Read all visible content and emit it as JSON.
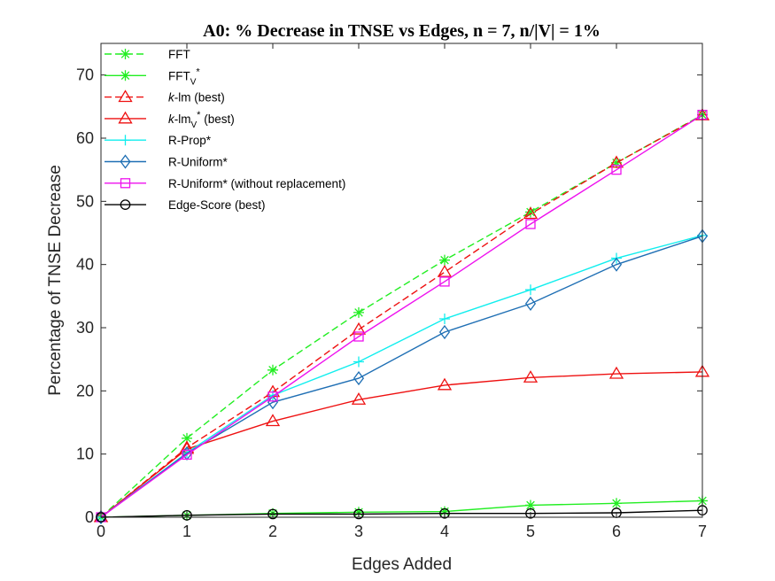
{
  "chart_data": {
    "type": "line",
    "title": "A0: % Decrease in TNSE vs Edges, n = 7, n/|V| = 1%",
    "xlabel": "Edges Added",
    "ylabel": "Percentage of TNSE Decrease",
    "xlim": [
      0,
      7
    ],
    "ylim": [
      0,
      75
    ],
    "xticks": [
      "0",
      "1",
      "2",
      "3",
      "4",
      "5",
      "6",
      "7"
    ],
    "yticks": [
      "0",
      "10",
      "20",
      "30",
      "40",
      "50",
      "60",
      "70"
    ],
    "grid": false,
    "legend_position": "top-left",
    "x": [
      0,
      1,
      2,
      3,
      4,
      5,
      6,
      7
    ],
    "series": [
      {
        "name": "FFT",
        "legend_main": "FFT",
        "legend_sub": "",
        "legend_sup": "",
        "legend_suffix": "",
        "color": "#22ee22",
        "dash": "dashed",
        "marker": "asterisk",
        "values": [
          0,
          12.5,
          23.3,
          32.4,
          40.7,
          48.3,
          56.1,
          63.7
        ]
      },
      {
        "name": "FFT_V*",
        "legend_main": "FFT",
        "legend_sub": "V",
        "legend_sup": "*",
        "legend_suffix": "",
        "color": "#22ee22",
        "dash": "solid",
        "marker": "asterisk",
        "values": [
          0,
          0.3,
          0.6,
          0.8,
          0.9,
          1.9,
          2.2,
          2.6
        ]
      },
      {
        "name": "k-lm (best)",
        "legend_main": "k",
        "legend_sub": "",
        "legend_sup": "",
        "legend_suffix": "-lm (best)",
        "color": "#ee1111",
        "dash": "dashed",
        "marker": "triangle",
        "values": [
          0,
          11.0,
          19.8,
          29.7,
          38.8,
          48.0,
          56.1,
          63.6
        ]
      },
      {
        "name": "k-lm_V* (best)",
        "legend_main": "k",
        "legend_sub": "V",
        "legend_sup": "*",
        "legend_suffix": "-lm",
        "legend_tail": " (best)",
        "color": "#ee1111",
        "dash": "solid",
        "marker": "triangle",
        "values": [
          0,
          10.8,
          15.2,
          18.6,
          20.9,
          22.1,
          22.7,
          23.0
        ]
      },
      {
        "name": "R-Prop*",
        "legend_main": "R-Prop*",
        "legend_sub": "",
        "legend_sup": "",
        "legend_suffix": "",
        "color": "#11eeee",
        "dash": "solid",
        "marker": "plus",
        "values": [
          0,
          10.2,
          19.3,
          24.6,
          31.4,
          36.0,
          41.0,
          44.6
        ]
      },
      {
        "name": "R-Uniform*",
        "legend_main": "R-Uniform*",
        "legend_sub": "",
        "legend_sup": "",
        "legend_suffix": "",
        "color": "#1f6fb4",
        "dash": "solid",
        "marker": "diamond",
        "values": [
          0,
          10.1,
          18.2,
          22.0,
          29.3,
          33.8,
          40.0,
          44.5
        ]
      },
      {
        "name": "R-Uniform* (without replacement)",
        "legend_main": "R-Uniform* (without replacement)",
        "legend_sub": "",
        "legend_sup": "",
        "legend_suffix": "",
        "color": "#ee11ee",
        "dash": "solid",
        "marker": "square",
        "values": [
          0,
          9.9,
          19.1,
          28.6,
          37.3,
          46.4,
          55.0,
          63.7
        ]
      },
      {
        "name": "Edge-Score (best)",
        "legend_main": "Edge-Score (best)",
        "legend_sub": "",
        "legend_sup": "",
        "legend_suffix": "",
        "color": "#000000",
        "dash": "solid",
        "marker": "circle",
        "values": [
          0,
          0.3,
          0.5,
          0.5,
          0.6,
          0.6,
          0.7,
          1.1
        ]
      }
    ]
  }
}
